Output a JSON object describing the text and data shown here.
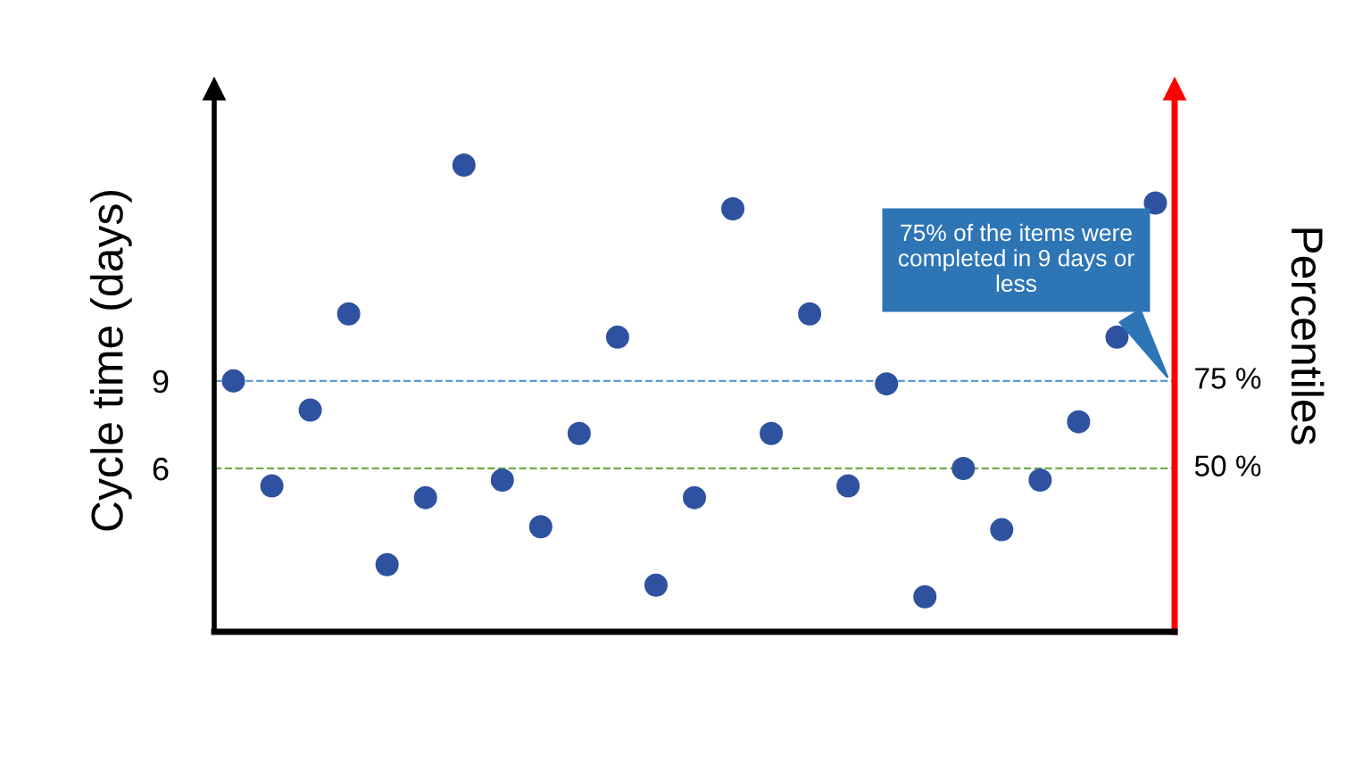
{
  "chart_data": {
    "type": "scatter",
    "categories": [
      null,
      null,
      null,
      null,
      null,
      null,
      null,
      null,
      null,
      null,
      null,
      null,
      null,
      null,
      null,
      null,
      null,
      null,
      null,
      null,
      null,
      null,
      null,
      null,
      null
    ],
    "values": [
      9.0,
      5.4,
      8.0,
      11.3,
      2.7,
      5.0,
      16.4,
      5.6,
      4.0,
      7.2,
      10.5,
      2.0,
      5.0,
      14.9,
      7.2,
      11.3,
      5.4,
      8.9,
      1.6,
      6.0,
      3.9,
      5.6,
      7.6,
      10.5,
      15.1
    ],
    "color": "#2f52a0",
    "marker": "circle",
    "ylim": [
      0.4,
      19
    ],
    "yticks": [
      6,
      9
    ],
    "tick_labels": "y",
    "grid": false,
    "ylabel": "Cycle time (days)",
    "y2label": "Percentiles",
    "ref_lines": [
      {
        "axis": "y",
        "value": 9,
        "color": "#5b9bd5",
        "line_style": "dashed"
      },
      {
        "axis": "y",
        "value": 6,
        "color": "#70ad47",
        "line_style": "dashed"
      }
    ],
    "annotations": [
      "75 %",
      "50 %",
      "75% of the items were completed in 9 days or less"
    ]
  }
}
